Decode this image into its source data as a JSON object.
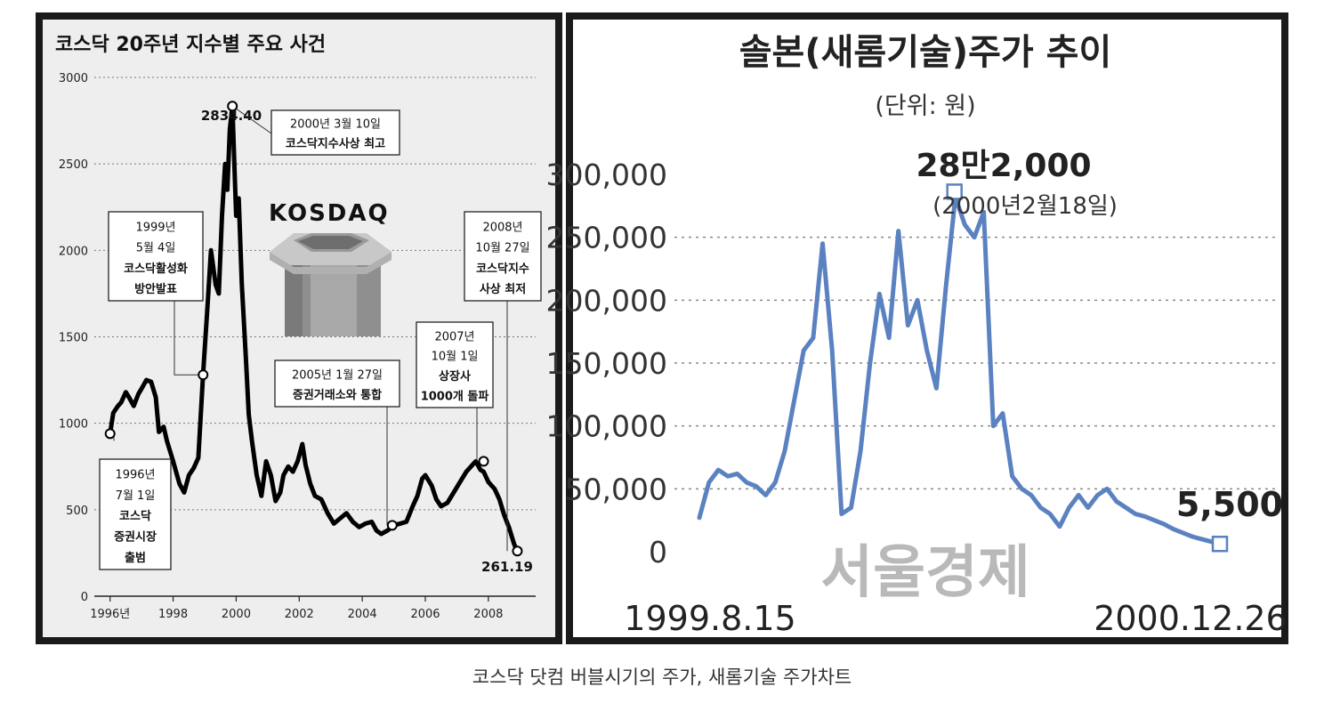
{
  "caption": "코스닥 닷컴 버블시기의 주가, 새롬기술 주가차트",
  "colors": {
    "frame": "#1a1a1a",
    "panel1_bg": "#eeeeee",
    "panel2_bg": "#ffffff",
    "kosdaq_line": "#000000",
    "stock_line": "#5b82c0",
    "watermark": "#b9b9b9",
    "grid": "#888888"
  },
  "chart_data": [
    {
      "type": "line",
      "title": "코스닥 20주년 지수별 주요 사건",
      "xlabel": "",
      "ylabel": "",
      "ylim": [
        0,
        3000
      ],
      "xlim": [
        1995.5,
        2009.5
      ],
      "grid": true,
      "y_ticks": [
        "3000",
        "2500",
        "2000",
        "1500",
        "1000",
        "500",
        "0"
      ],
      "x_ticks": [
        {
          "x": 1996,
          "label": "1996년"
        },
        {
          "x": 1998,
          "label": "1998"
        },
        {
          "x": 2000,
          "label": "2000"
        },
        {
          "x": 2002,
          "label": "2002"
        },
        {
          "x": 2004,
          "label": "2004"
        },
        {
          "x": 2006,
          "label": "2006"
        },
        {
          "x": 2008,
          "label": "2008"
        }
      ],
      "logo_text": "KOSDAQ",
      "series": [
        {
          "x": [
            1996.0,
            1996.1,
            1996.25,
            1996.35,
            1996.5,
            1996.6,
            1996.75,
            1996.9,
            1997.0,
            1997.15,
            1997.3,
            1997.45,
            1997.55,
            1997.7,
            1997.8,
            1998.0,
            1998.2,
            1998.35,
            1998.5,
            1998.65,
            1998.8,
            1998.95,
            1999.1,
            1999.2,
            1999.35,
            1999.45,
            1999.55,
            1999.65,
            1999.72,
            1999.8,
            1999.88,
            1999.95,
            2000.0,
            2000.08,
            2000.18,
            2000.3,
            2000.4,
            2000.5,
            2000.65,
            2000.8,
            2000.95,
            2001.1,
            2001.25,
            2001.4,
            2001.5,
            2001.65,
            2001.8,
            2001.95,
            2002.1,
            2002.2,
            2002.35,
            2002.5,
            2002.7,
            2002.9,
            2003.1,
            2003.3,
            2003.5,
            2003.7,
            2003.9,
            2004.1,
            2004.3,
            2004.45,
            2004.6,
            2004.8,
            2005.0,
            2005.2,
            2005.4,
            2005.6,
            2005.75,
            2005.9,
            2006.0,
            2006.2,
            2006.35,
            2006.5,
            2006.7,
            2006.9,
            2007.1,
            2007.3,
            2007.5,
            2007.6,
            2007.75,
            2007.85,
            2008.0,
            2008.2,
            2008.35,
            2008.5,
            2008.65,
            2008.82,
            2008.92
          ],
          "values": [
            940,
            1060,
            1100,
            1120,
            1180,
            1150,
            1100,
            1170,
            1200,
            1250,
            1240,
            1150,
            950,
            980,
            900,
            780,
            650,
            600,
            700,
            740,
            800,
            1280,
            1700,
            2000,
            1800,
            1750,
            2200,
            2500,
            2350,
            2700,
            2834,
            2450,
            2200,
            2300,
            1800,
            1400,
            1050,
            900,
            700,
            580,
            780,
            700,
            550,
            600,
            700,
            750,
            720,
            780,
            880,
            760,
            650,
            580,
            560,
            480,
            420,
            450,
            480,
            430,
            400,
            420,
            430,
            380,
            360,
            380,
            410,
            420,
            430,
            520,
            580,
            680,
            700,
            640,
            560,
            520,
            540,
            600,
            660,
            720,
            760,
            780,
            730,
            720,
            660,
            620,
            560,
            470,
            400,
            300,
            261
          ]
        }
      ],
      "annotations": [
        {
          "point": [
            1999.88,
            2834
          ],
          "value_label": "2834.40",
          "lines": [
            "2000년 3월 10일",
            "코스닥지수사상 최고"
          ]
        },
        {
          "point": [
            1998.95,
            1280
          ],
          "lines": [
            "1999년",
            "5월 4일",
            "코스닥활성화",
            "방안발표"
          ]
        },
        {
          "point": [
            1996.0,
            940
          ],
          "lines": [
            "1996년",
            "7월 1일",
            "코스닥",
            "증권시장",
            "출범"
          ]
        },
        {
          "point": [
            2004.95,
            410
          ],
          "lines": [
            "2005년 1월 27일",
            "증권거래소와 통합"
          ]
        },
        {
          "point": [
            2007.85,
            780
          ],
          "lines": [
            "2007년",
            "10월 1일",
            "상장사",
            "1000개 돌파"
          ]
        },
        {
          "point": [
            2008.92,
            261
          ],
          "value_label": "261.19",
          "lines": [
            "2008년",
            "10월 27일",
            "코스닥지수",
            "사상 최저"
          ]
        }
      ]
    },
    {
      "type": "line",
      "title": "솔본(새롬기술)주가 추이",
      "subtitle": "(단위: 원)",
      "xlabel": "",
      "ylabel": "",
      "ylim": [
        0,
        300000
      ],
      "grid": true,
      "y_ticks": [
        "300,000",
        "250,000",
        "200,000",
        "150,000",
        "100,000",
        "50,000",
        "0"
      ],
      "x_start_label": "1999.8.15",
      "x_end_label": "2000.12.26",
      "watermark": "서울경제",
      "peak": {
        "value_label": "28만2,000",
        "date_label": "(2000년2월18일)",
        "value": 282000
      },
      "end": {
        "value_label": "5,500",
        "value": 5500
      },
      "series": [
        {
          "values": [
            27000,
            55000,
            65000,
            60000,
            62000,
            55000,
            52000,
            45000,
            55000,
            80000,
            120000,
            160000,
            170000,
            245000,
            160000,
            30000,
            35000,
            80000,
            150000,
            205000,
            170000,
            255000,
            180000,
            200000,
            160000,
            130000,
            210000,
            282000,
            260000,
            250000,
            270000,
            100000,
            110000,
            60000,
            50000,
            45000,
            35000,
            30000,
            20000,
            35000,
            45000,
            35000,
            45000,
            50000,
            40000,
            35000,
            30000,
            28000,
            25000,
            22000,
            18000,
            15000,
            12000,
            10000,
            8000,
            5500
          ]
        }
      ]
    }
  ]
}
